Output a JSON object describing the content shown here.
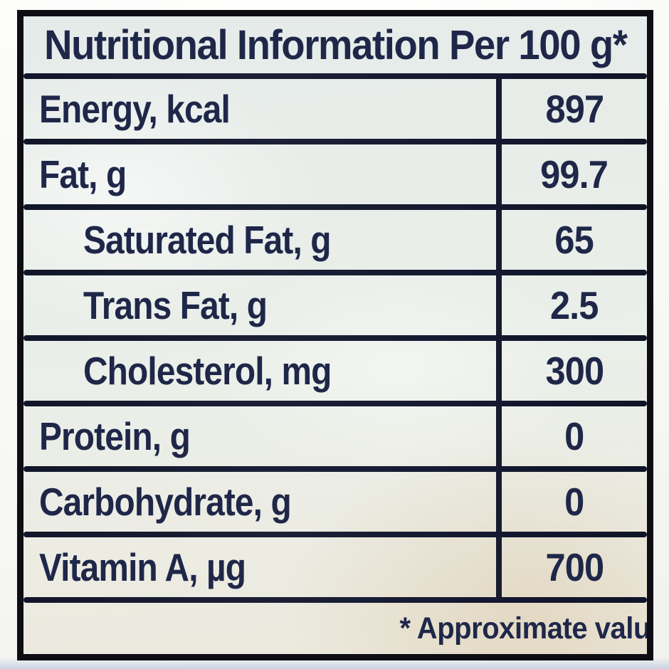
{
  "label": {
    "title": "Nutritional Information Per 100 g*",
    "rows": [
      {
        "name": "Energy, kcal",
        "value": "897",
        "indent": false
      },
      {
        "name": "Fat, g",
        "value": "99.7",
        "indent": false
      },
      {
        "name": "Saturated Fat, g",
        "value": "65",
        "indent": true
      },
      {
        "name": "Trans Fat, g",
        "value": "2.5",
        "indent": true
      },
      {
        "name": "Cholesterol, mg",
        "value": "300",
        "indent": true
      },
      {
        "name": "Protein, g",
        "value": "0",
        "indent": false
      },
      {
        "name": "Carbohydrate, g",
        "value": "0",
        "indent": false
      },
      {
        "name": "Vitamin A, µg",
        "value": "700",
        "indent": false
      }
    ],
    "footnote": "* Approximate valu",
    "colors": {
      "text": "#1f2749",
      "rule": "#171b2d",
      "frame": "#0d0d13",
      "paper": "#e9eeea"
    }
  }
}
